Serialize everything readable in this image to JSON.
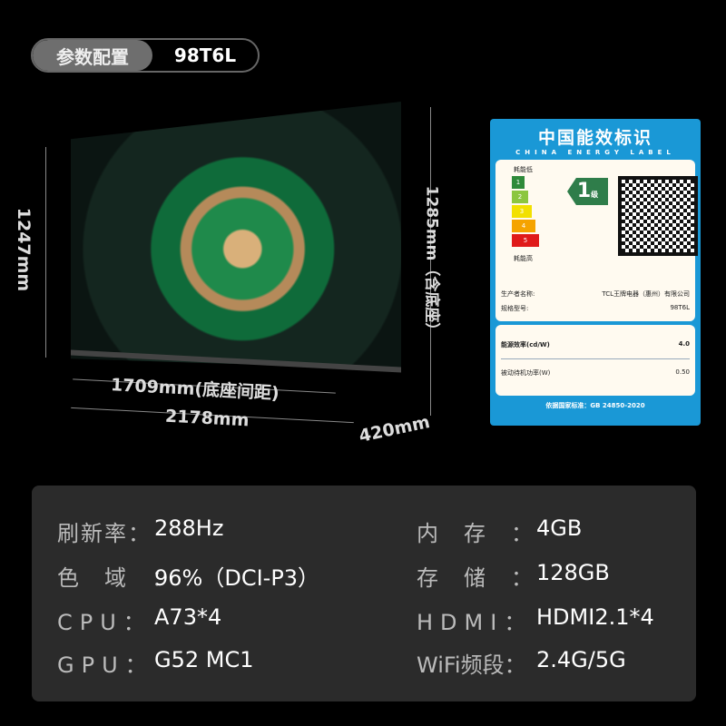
{
  "header": {
    "section_label": "参数配置",
    "model": "98T6L"
  },
  "dimensions": {
    "height_no_stand": "1247mm",
    "height_with_stand": "1285mm（含底座）",
    "stand_spacing": "1709mm(底座间距)",
    "width": "2178mm",
    "depth": "420mm"
  },
  "energy_label": {
    "title": "中国能效标识",
    "subtitle": "CHINA ENERGY LABEL",
    "low": "耗能低",
    "high": "耗能高",
    "grades": [
      "1",
      "2",
      "3",
      "4",
      "5"
    ],
    "grade": "1",
    "grade_unit": "级",
    "manufacturer_label": "生产者名称:",
    "manufacturer": "TCL王牌电器（惠州）有限公司",
    "model_label": "规格型号:",
    "model": "98T6L",
    "efficiency_label": "能源效率(cd/W)",
    "efficiency": "4.0",
    "standby_label": "被动待机功率(W)",
    "standby": "0.50",
    "standard": "依据国家标准：GB 24850-2020"
  },
  "specs": [
    {
      "key": "刷新率：",
      "value": "288Hz"
    },
    {
      "key": "内　存　：",
      "value": "4GB"
    },
    {
      "key": "色　域　：",
      "value": "96%（DCI-P3）"
    },
    {
      "key": "存　储　：",
      "value": "128GB"
    },
    {
      "key": "CPU：",
      "value": "A73*4"
    },
    {
      "key": "HDMI：",
      "value": "HDMI2.1*4"
    },
    {
      "key": "GPU：",
      "value": "G52 MC1"
    },
    {
      "key": "WiFi频段：",
      "value": "2.4G/5G"
    }
  ]
}
